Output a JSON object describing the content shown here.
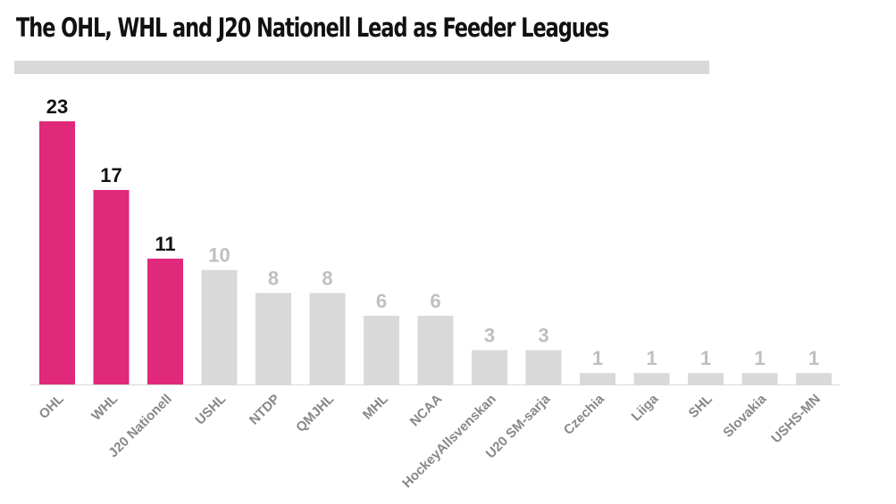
{
  "title": "The OHL, WHL and J20 Nationell Lead as Feeder Leagues",
  "chart_data": {
    "type": "bar",
    "title": "The OHL, WHL and J20 Nationell Lead as Feeder Leagues",
    "xlabel": "",
    "ylabel": "",
    "ylim": [
      0,
      23
    ],
    "categories": [
      "OHL",
      "WHL",
      "J20 Nationell",
      "USHL",
      "NTDP",
      "QMJHL",
      "MHL",
      "NCAA",
      "HockeyAllsvenskan",
      "U20 SM-sarja",
      "Czechia",
      "Liiga",
      "SHL",
      "Slovakia",
      "USHS-MN"
    ],
    "values": [
      23,
      17,
      11,
      10,
      8,
      8,
      6,
      6,
      3,
      3,
      1,
      1,
      1,
      1,
      1
    ],
    "highlighted": [
      true,
      true,
      true,
      false,
      false,
      false,
      false,
      false,
      false,
      false,
      false,
      false,
      false,
      false,
      false
    ],
    "colors": {
      "highlight": "#e0297b",
      "other": "#d9d9d9",
      "highlight_label": "#111111",
      "other_label": "#bfbfbf",
      "axis": "#d9d9d9"
    },
    "grid": false
  }
}
